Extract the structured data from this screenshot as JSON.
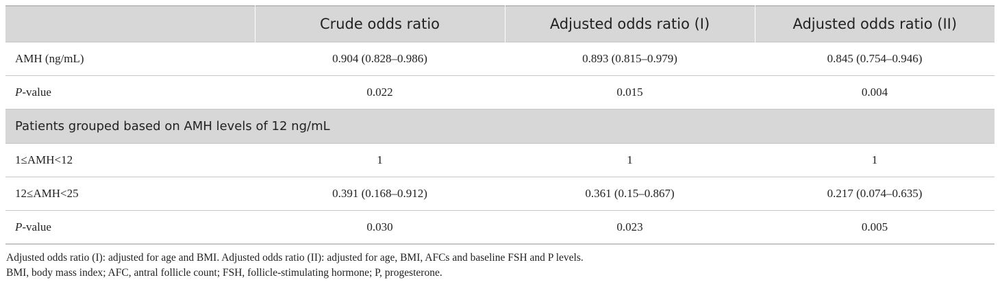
{
  "table": {
    "headers": [
      "",
      "Crude odds ratio",
      "Adjusted odds ratio (I)",
      "Adjusted odds ratio (II)"
    ],
    "rows": [
      {
        "type": "data",
        "label": "AMH (ng/mL)",
        "cells": [
          "0.904 (0.828–0.986)",
          "0.893 (0.815–0.979)",
          "0.845 (0.754–0.946)"
        ]
      },
      {
        "type": "pvalue",
        "label_italic": "P",
        "label_rest": "-value",
        "cells": [
          "0.022",
          "0.015",
          "0.004"
        ]
      },
      {
        "type": "group",
        "label": "Patients grouped based on AMH levels of 12 ng/mL"
      },
      {
        "type": "data",
        "label": "1≤AMH<12",
        "cells": [
          "1",
          "1",
          "1"
        ]
      },
      {
        "type": "data",
        "label": "12≤AMH<25",
        "cells": [
          "0.391 (0.168–0.912)",
          "0.361 (0.15–0.867)",
          "0.217 (0.074–0.635)"
        ]
      },
      {
        "type": "pvalue",
        "label_italic": "P",
        "label_rest": "-value",
        "cells": [
          "0.030",
          "0.023",
          "0.005"
        ]
      }
    ]
  },
  "footnotes": [
    "Adjusted odds ratio (I): adjusted for age and BMI. Adjusted odds ratio (II): adjusted for age, BMI, AFCs and baseline FSH and P levels.",
    "BMI, body mass index; AFC, antral follicle count; FSH, follicle-stimulating hormone; P, progesterone."
  ]
}
